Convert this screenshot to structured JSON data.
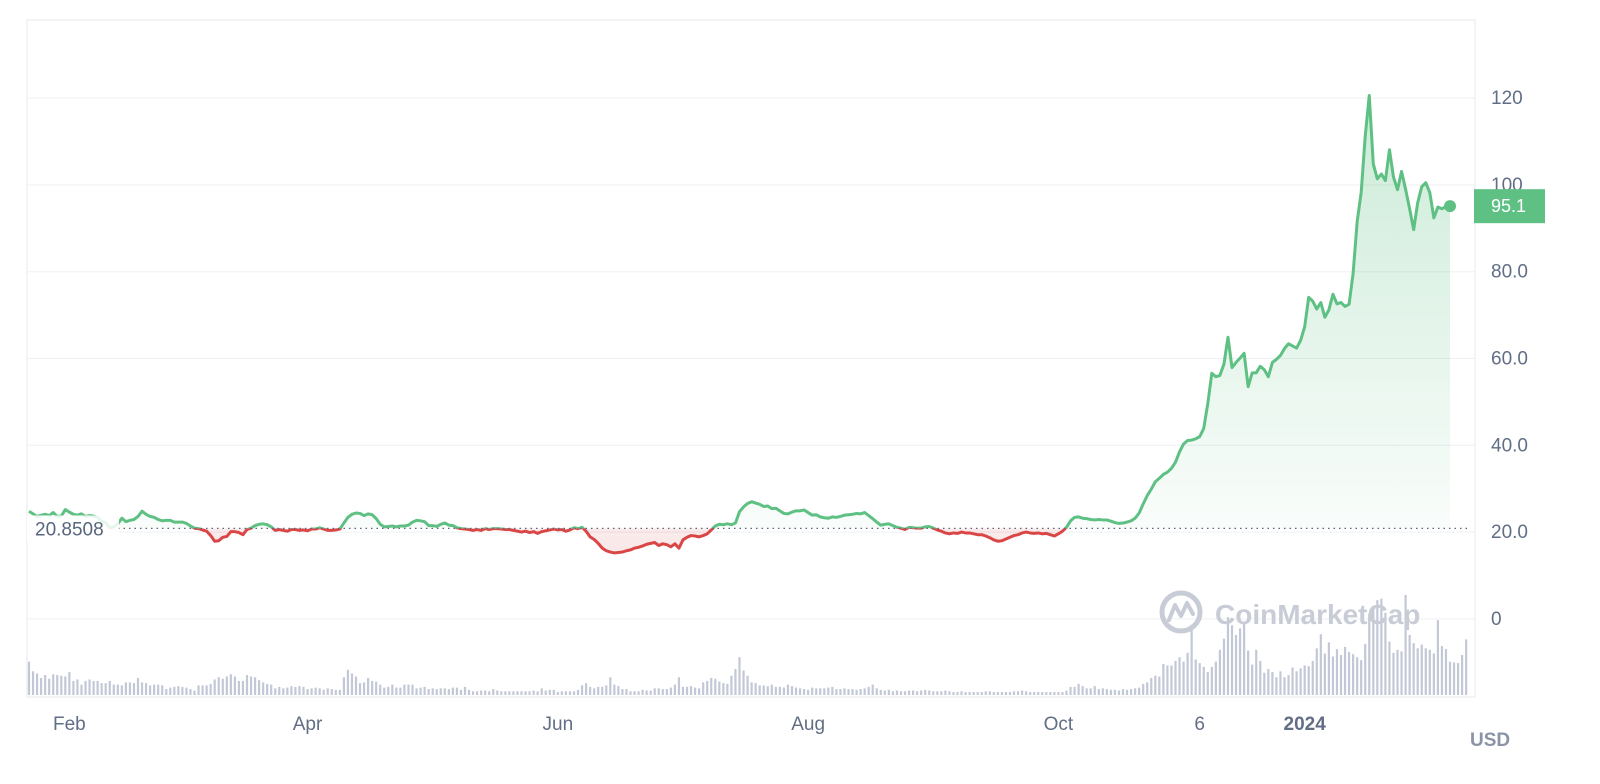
{
  "chart_data": {
    "type": "line",
    "title": "",
    "xlabel": "",
    "ylabel": "",
    "currency_label": "USD",
    "watermark": "CoinMarketCap",
    "baseline_value": 20.8508,
    "baseline_label": "20.8508",
    "last_price": 95.1,
    "last_price_label": "95.1",
    "ylim": [
      -18,
      138
    ],
    "y_ticks": [
      {
        "value": 120,
        "label": "120"
      },
      {
        "value": 100,
        "label": "100"
      },
      {
        "value": 80,
        "label": "80.0"
      },
      {
        "value": 60,
        "label": "60.0"
      },
      {
        "value": 40,
        "label": "40.0"
      },
      {
        "value": 20,
        "label": "20.0"
      },
      {
        "value": 0,
        "label": "0"
      }
    ],
    "x_ticks": [
      {
        "index": 10,
        "label": "Feb",
        "bold": false
      },
      {
        "index": 69,
        "label": "Apr",
        "bold": false
      },
      {
        "index": 131,
        "label": "Jun",
        "bold": false
      },
      {
        "index": 193,
        "label": "Aug",
        "bold": false
      },
      {
        "index": 255,
        "label": "Oct",
        "bold": false
      },
      {
        "index": 290,
        "label": "6",
        "bold": false
      },
      {
        "index": 316,
        "label": "2024",
        "bold": true
      }
    ],
    "colors": {
      "up": "#5ec083",
      "down": "#d94645",
      "volume": "#c3c8d6",
      "grid": "#eef0f3",
      "text": "#616e85"
    },
    "series": [
      {
        "values": [
          24.8,
          24.2,
          23.6,
          23.9,
          24.1,
          23.8,
          24.5,
          23.6,
          23.7,
          25.2,
          24.6,
          24.1,
          23.9,
          24.2,
          23.6,
          23.8,
          23.7,
          23.4,
          22.5,
          22.2,
          21.0,
          21.2,
          21.9,
          23.2,
          22.4,
          22.7,
          22.9,
          23.6,
          24.8,
          24.1,
          23.6,
          23.4,
          22.9,
          22.6,
          22.7,
          22.7,
          22.3,
          22.3,
          22.3,
          22.0,
          21.4,
          20.9,
          20.8,
          20.5,
          20.2,
          19.2,
          17.9,
          18.0,
          18.8,
          19.0,
          20.1,
          20.1,
          19.9,
          19.4,
          20.6,
          20.9,
          21.5,
          21.8,
          21.9,
          21.7,
          21.2,
          20.4,
          20.6,
          20.4,
          20.2,
          20.6,
          20.6,
          20.4,
          20.5,
          20.3,
          20.7,
          20.7,
          21.0,
          20.7,
          20.4,
          20.4,
          20.5,
          20.7,
          22.1,
          23.4,
          24.1,
          24.4,
          24.3,
          23.8,
          24.2,
          24.0,
          23.1,
          21.8,
          21.2,
          21.3,
          21.4,
          21.2,
          21.4,
          21.4,
          21.6,
          22.3,
          22.7,
          22.6,
          22.4,
          21.5,
          21.5,
          21.3,
          21.8,
          22.1,
          21.6,
          21.5,
          21.0,
          20.8,
          20.7,
          20.6,
          20.4,
          20.6,
          20.4,
          20.8,
          20.6,
          20.8,
          20.8,
          20.7,
          20.6,
          20.6,
          20.4,
          20.2,
          20.0,
          20.2,
          19.9,
          20.1,
          19.7,
          20.1,
          20.3,
          20.5,
          20.7,
          20.5,
          20.6,
          20.2,
          20.5,
          21.0,
          20.8,
          21.1,
          20.2,
          18.9,
          18.3,
          17.4,
          16.3,
          15.7,
          15.4,
          15.2,
          15.3,
          15.4,
          15.7,
          15.9,
          16.3,
          16.5,
          16.8,
          17.2,
          17.4,
          17.6,
          16.9,
          17.3,
          17.1,
          16.6,
          17.3,
          16.3,
          18.2,
          18.8,
          19.2,
          19.1,
          18.9,
          19.2,
          19.6,
          20.5,
          21.4,
          21.8,
          21.7,
          21.9,
          21.7,
          22.1,
          24.7,
          25.8,
          26.6,
          27.0,
          26.7,
          26.4,
          25.9,
          26.0,
          25.4,
          25.5,
          24.9,
          24.3,
          24.2,
          24.6,
          24.9,
          24.9,
          25.1,
          24.5,
          23.9,
          24.0,
          23.5,
          23.3,
          23.2,
          23.5,
          23.4,
          23.6,
          23.9,
          24.0,
          24.1,
          24.3,
          24.2,
          24.5,
          23.8,
          23.1,
          22.3,
          21.6,
          21.8,
          21.9,
          21.5,
          21.1,
          20.9,
          20.6,
          21.1,
          21.0,
          20.9,
          20.9,
          21.2,
          21.3,
          20.9,
          20.5,
          20.2,
          19.8,
          19.6,
          19.8,
          19.7,
          20.0,
          19.8,
          19.8,
          19.6,
          19.4,
          19.4,
          19.1,
          18.7,
          18.2,
          17.9,
          18.0,
          18.4,
          18.8,
          19.2,
          19.4,
          19.8,
          20.0,
          19.8,
          19.7,
          19.8,
          19.6,
          19.7,
          19.4,
          19.1,
          19.6,
          20.2,
          21.1,
          22.6,
          23.4,
          23.5,
          23.2,
          23.1,
          22.9,
          22.8,
          22.9,
          22.8,
          22.8,
          22.5,
          22.2,
          22.0,
          22.1,
          22.3,
          22.6,
          23.2,
          24.4,
          26.5,
          28.4,
          29.9,
          31.6,
          32.4,
          33.3,
          33.8,
          34.7,
          36.1,
          38.5,
          40.3,
          41.1,
          41.2,
          41.5,
          42.0,
          43.9,
          49.6,
          56.6,
          55.8,
          56.1,
          58.7,
          64.9,
          57.9,
          59.1,
          60.1,
          61.2,
          53.5,
          56.7,
          56.7,
          58.2,
          57.4,
          55.8,
          59.1,
          59.8,
          60.7,
          62.3,
          63.4,
          62.9,
          62.4,
          64.2,
          67.3,
          74.1,
          73.2,
          71.4,
          72.9,
          69.5,
          71.2,
          74.8,
          72.6,
          72.9,
          72.0,
          72.5,
          79.6,
          91.5,
          98.3,
          111.2,
          120.6,
          104.8,
          101.4,
          102.5,
          101.0,
          108.1,
          101.8,
          98.9,
          103.1,
          99.0,
          94.5,
          89.7,
          95.9,
          99.6,
          100.5,
          98.2,
          92.4,
          94.9,
          94.5,
          95.0,
          95.1
        ]
      }
    ],
    "volume": [
      0.45,
      0.32,
      0.29,
      0.23,
      0.27,
      0.22,
      0.28,
      0.27,
      0.26,
      0.25,
      0.31,
      0.19,
      0.21,
      0.14,
      0.19,
      0.21,
      0.19,
      0.19,
      0.16,
      0.16,
      0.19,
      0.14,
      0.14,
      0.13,
      0.17,
      0.17,
      0.16,
      0.23,
      0.17,
      0.16,
      0.13,
      0.14,
      0.14,
      0.13,
      0.08,
      0.1,
      0.11,
      0.12,
      0.11,
      0.1,
      0.08,
      0.06,
      0.13,
      0.13,
      0.13,
      0.15,
      0.21,
      0.24,
      0.22,
      0.25,
      0.28,
      0.25,
      0.19,
      0.19,
      0.27,
      0.25,
      0.24,
      0.2,
      0.17,
      0.15,
      0.14,
      0.09,
      0.11,
      0.09,
      0.1,
      0.12,
      0.11,
      0.12,
      0.11,
      0.08,
      0.09,
      0.1,
      0.09,
      0.07,
      0.09,
      0.08,
      0.07,
      0.07,
      0.24,
      0.34,
      0.29,
      0.25,
      0.16,
      0.17,
      0.23,
      0.19,
      0.18,
      0.14,
      0.1,
      0.11,
      0.14,
      0.1,
      0.1,
      0.14,
      0.14,
      0.14,
      0.09,
      0.1,
      0.11,
      0.08,
      0.09,
      0.08,
      0.09,
      0.09,
      0.08,
      0.1,
      0.1,
      0.07,
      0.11,
      0.07,
      0.05,
      0.05,
      0.06,
      0.06,
      0.05,
      0.08,
      0.06,
      0.05,
      0.05,
      0.05,
      0.05,
      0.05,
      0.05,
      0.05,
      0.05,
      0.06,
      0.05,
      0.09,
      0.06,
      0.07,
      0.07,
      0.04,
      0.05,
      0.05,
      0.05,
      0.05,
      0.07,
      0.13,
      0.16,
      0.11,
      0.09,
      0.11,
      0.11,
      0.13,
      0.24,
      0.14,
      0.12,
      0.08,
      0.08,
      0.05,
      0.05,
      0.05,
      0.07,
      0.06,
      0.06,
      0.09,
      0.09,
      0.08,
      0.08,
      0.1,
      0.14,
      0.24,
      0.11,
      0.11,
      0.12,
      0.1,
      0.09,
      0.17,
      0.19,
      0.23,
      0.22,
      0.18,
      0.16,
      0.15,
      0.26,
      0.35,
      0.51,
      0.33,
      0.26,
      0.17,
      0.16,
      0.13,
      0.13,
      0.12,
      0.14,
      0.11,
      0.11,
      0.1,
      0.14,
      0.12,
      0.1,
      0.09,
      0.08,
      0.07,
      0.1,
      0.09,
      0.09,
      0.09,
      0.1,
      0.11,
      0.08,
      0.08,
      0.09,
      0.08,
      0.08,
      0.07,
      0.08,
      0.09,
      0.11,
      0.14,
      0.09,
      0.07,
      0.06,
      0.07,
      0.05,
      0.06,
      0.05,
      0.05,
      0.06,
      0.06,
      0.05,
      0.06,
      0.07,
      0.06,
      0.05,
      0.05,
      0.05,
      0.06,
      0.05,
      0.04,
      0.04,
      0.05,
      0.04,
      0.04,
      0.04,
      0.04,
      0.04,
      0.05,
      0.05,
      0.04,
      0.04,
      0.04,
      0.04,
      0.04,
      0.05,
      0.05,
      0.06,
      0.05,
      0.04,
      0.04,
      0.04,
      0.04,
      0.04,
      0.04,
      0.04,
      0.04,
      0.04,
      0.06,
      0.11,
      0.11,
      0.15,
      0.12,
      0.09,
      0.09,
      0.12,
      0.08,
      0.09,
      0.08,
      0.07,
      0.07,
      0.06,
      0.08,
      0.07,
      0.08,
      0.09,
      0.1,
      0.15,
      0.17,
      0.23,
      0.26,
      0.25,
      0.42,
      0.4,
      0.4,
      0.46,
      0.51,
      0.45,
      0.57,
      0.95,
      0.48,
      0.43,
      0.38,
      0.31,
      0.38,
      0.45,
      0.61,
      0.76,
      1.05,
      0.94,
      0.81,
      0.9,
      0.97,
      0.6,
      0.41,
      0.61,
      0.46,
      0.3,
      0.35,
      0.31,
      0.24,
      0.32,
      0.24,
      0.27,
      0.37,
      0.32,
      0.36,
      0.4,
      0.39,
      0.46,
      0.63,
      0.82,
      0.56,
      0.71,
      0.52,
      0.62,
      0.54,
      0.65,
      0.58,
      0.55,
      0.51,
      0.47,
      0.69,
      1.1,
      1.18,
      1.28,
      1.3,
      1.11,
      0.72,
      0.57,
      0.61,
      0.59,
      1.35,
      0.81,
      0.7,
      0.63,
      0.68,
      0.63,
      0.61,
      0.56,
      1.01,
      0.66,
      0.62,
      0.45,
      0.44,
      0.43,
      0.54,
      0.75
    ]
  }
}
